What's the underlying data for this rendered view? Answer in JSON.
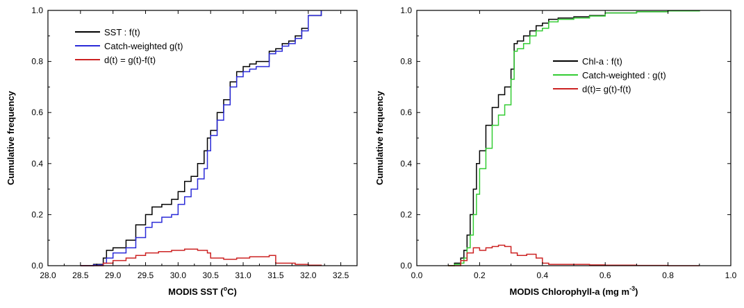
{
  "chart_data": [
    {
      "type": "line",
      "subtype": "step-cumulative",
      "xlabel": "MODIS SST (°C)",
      "xlabel_main": "MODIS SST (",
      "xlabel_sup": "o",
      "xlabel_end": "C)",
      "ylabel": "Cumulative frequency",
      "xlim": [
        28.0,
        32.75
      ],
      "ylim": [
        0.0,
        1.0
      ],
      "xticks": [
        "28.0",
        "28.5",
        "29.0",
        "29.5",
        "30.0",
        "30.5",
        "31.0",
        "31.5",
        "32.0",
        "32.5"
      ],
      "xtick_values": [
        28.0,
        28.5,
        29.0,
        29.5,
        30.0,
        30.5,
        31.0,
        31.5,
        32.0,
        32.5
      ],
      "yticks": [
        "0.0",
        "0.2",
        "0.4",
        "0.6",
        "0.8",
        "1.0"
      ],
      "ytick_values": [
        0.0,
        0.2,
        0.4,
        0.6,
        0.8,
        1.0
      ],
      "legend_position": "top-left",
      "series": [
        {
          "name": "SST : f(t)",
          "color": "#000000",
          "x": [
            28.5,
            28.7,
            28.85,
            28.9,
            29.0,
            29.2,
            29.35,
            29.5,
            29.6,
            29.75,
            29.9,
            30.0,
            30.1,
            30.2,
            30.3,
            30.4,
            30.45,
            30.5,
            30.6,
            30.7,
            30.8,
            30.9,
            31.0,
            31.1,
            31.2,
            31.3,
            31.4,
            31.5,
            31.6,
            31.7,
            31.8,
            31.9,
            32.0,
            32.2
          ],
          "y": [
            0.0,
            0.005,
            0.03,
            0.06,
            0.07,
            0.1,
            0.16,
            0.2,
            0.23,
            0.24,
            0.26,
            0.29,
            0.33,
            0.35,
            0.4,
            0.45,
            0.5,
            0.53,
            0.6,
            0.65,
            0.72,
            0.76,
            0.78,
            0.79,
            0.8,
            0.8,
            0.84,
            0.85,
            0.87,
            0.88,
            0.9,
            0.93,
            0.98,
            1.0
          ]
        },
        {
          "name": "Catch-weighted g(t)",
          "color": "#2a2ad8",
          "x": [
            28.5,
            28.7,
            28.85,
            28.9,
            29.0,
            29.2,
            29.35,
            29.5,
            29.6,
            29.75,
            29.9,
            30.0,
            30.1,
            30.2,
            30.3,
            30.4,
            30.45,
            30.5,
            30.6,
            30.7,
            30.8,
            30.9,
            31.0,
            31.1,
            31.2,
            31.3,
            31.4,
            31.5,
            31.6,
            31.7,
            31.8,
            31.9,
            32.0,
            32.2
          ],
          "y": [
            0.0,
            0.003,
            0.01,
            0.03,
            0.05,
            0.07,
            0.11,
            0.15,
            0.17,
            0.19,
            0.2,
            0.24,
            0.27,
            0.3,
            0.34,
            0.38,
            0.45,
            0.51,
            0.57,
            0.63,
            0.7,
            0.74,
            0.76,
            0.77,
            0.78,
            0.78,
            0.83,
            0.84,
            0.86,
            0.87,
            0.89,
            0.92,
            0.98,
            1.0
          ]
        },
        {
          "name": "d(t) = g(t)-f(t)",
          "color": "#cc2222",
          "x": [
            28.5,
            28.85,
            29.0,
            29.2,
            29.35,
            29.5,
            29.7,
            29.9,
            30.1,
            30.3,
            30.45,
            30.5,
            30.7,
            30.9,
            31.1,
            31.4,
            31.5,
            31.8,
            32.0,
            32.2
          ],
          "y": [
            0.0,
            0.01,
            0.02,
            0.03,
            0.04,
            0.05,
            0.055,
            0.06,
            0.065,
            0.06,
            0.05,
            0.03,
            0.025,
            0.03,
            0.035,
            0.04,
            0.01,
            0.005,
            0.002,
            0.0
          ]
        }
      ]
    },
    {
      "type": "line",
      "subtype": "step-cumulative",
      "xlabel": "MODIS Chlorophyll-a (mg m⁻³)",
      "xlabel_main": "MODIS Chlorophyll-a (mg m",
      "xlabel_sup": "-3",
      "xlabel_end": ")",
      "ylabel": "Cumulative frequency",
      "xlim": [
        0.0,
        1.0
      ],
      "ylim": [
        0.0,
        1.0
      ],
      "xticks": [
        "0.0",
        "0.2",
        "0.4",
        "0.6",
        "0.8",
        "1.0"
      ],
      "xtick_values": [
        0.0,
        0.2,
        0.4,
        0.6,
        0.8,
        1.0
      ],
      "yticks": [
        "0.0",
        "0.2",
        "0.4",
        "0.6",
        "0.8",
        "1.0"
      ],
      "ytick_values": [
        0.0,
        0.2,
        0.4,
        0.6,
        0.8,
        1.0
      ],
      "legend_position": "center-right",
      "series": [
        {
          "name": "Chl-a : f(t)",
          "color": "#000000",
          "x": [
            0.1,
            0.12,
            0.14,
            0.15,
            0.16,
            0.17,
            0.18,
            0.19,
            0.2,
            0.22,
            0.24,
            0.26,
            0.28,
            0.3,
            0.31,
            0.32,
            0.34,
            0.36,
            0.38,
            0.4,
            0.42,
            0.45,
            0.5,
            0.55,
            0.6,
            0.7,
            0.8,
            0.9
          ],
          "y": [
            0.0,
            0.01,
            0.03,
            0.06,
            0.12,
            0.2,
            0.3,
            0.4,
            0.45,
            0.55,
            0.62,
            0.67,
            0.7,
            0.77,
            0.87,
            0.88,
            0.9,
            0.92,
            0.94,
            0.95,
            0.965,
            0.97,
            0.975,
            0.98,
            0.99,
            0.995,
            0.998,
            1.0
          ]
        },
        {
          "name": "Catch-weighted : g(t)",
          "color": "#33cc33",
          "x": [
            0.1,
            0.12,
            0.14,
            0.15,
            0.16,
            0.17,
            0.18,
            0.19,
            0.2,
            0.22,
            0.24,
            0.26,
            0.28,
            0.3,
            0.31,
            0.32,
            0.34,
            0.36,
            0.38,
            0.4,
            0.42,
            0.45,
            0.5,
            0.55,
            0.6,
            0.7,
            0.8,
            0.9
          ],
          "y": [
            0.0,
            0.005,
            0.01,
            0.03,
            0.07,
            0.12,
            0.2,
            0.28,
            0.38,
            0.46,
            0.55,
            0.59,
            0.63,
            0.73,
            0.84,
            0.85,
            0.87,
            0.9,
            0.92,
            0.93,
            0.955,
            0.965,
            0.97,
            0.978,
            0.99,
            0.995,
            0.998,
            1.0
          ]
        },
        {
          "name": "d(t)= g(t)-f(t)",
          "color": "#cc2222",
          "x": [
            0.1,
            0.14,
            0.16,
            0.18,
            0.2,
            0.22,
            0.24,
            0.26,
            0.28,
            0.3,
            0.32,
            0.35,
            0.38,
            0.4,
            0.42,
            0.5,
            0.55,
            0.6,
            0.7,
            0.8,
            0.9
          ],
          "y": [
            0.0,
            0.02,
            0.05,
            0.07,
            0.06,
            0.07,
            0.075,
            0.08,
            0.075,
            0.05,
            0.04,
            0.045,
            0.03,
            0.01,
            0.005,
            0.005,
            0.003,
            0.002,
            0.001,
            0.0,
            0.0
          ]
        }
      ]
    }
  ]
}
